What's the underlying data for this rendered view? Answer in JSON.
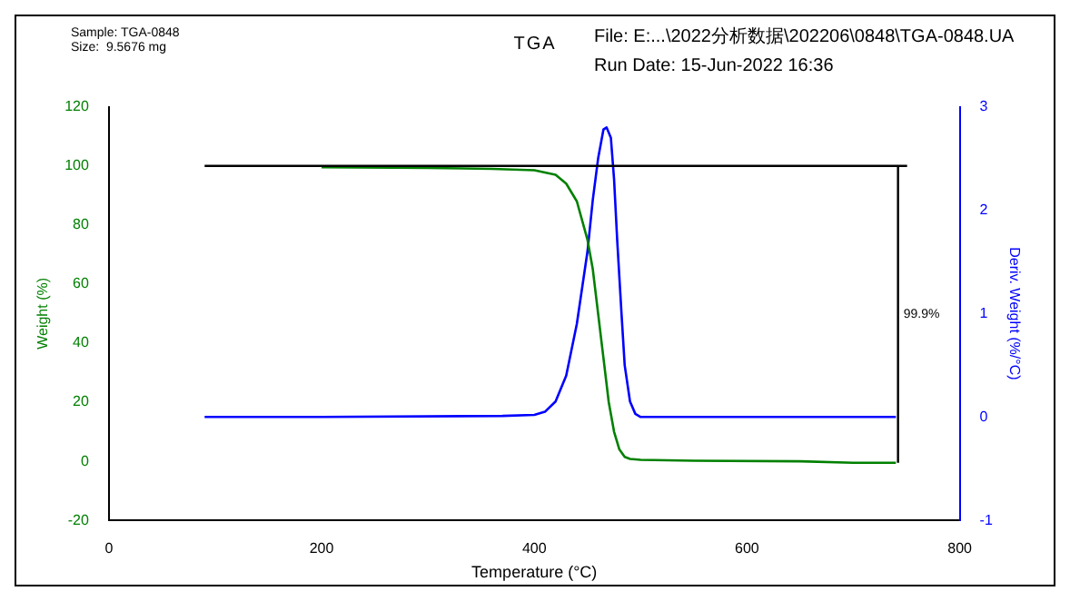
{
  "chart_data": {
    "type": "line",
    "title": "TGA",
    "xlabel": "Temperature (°C)",
    "ylabel": "Weight (%)",
    "y2label": "Deriv. Weight (%/°C)",
    "xlim": [
      0,
      800
    ],
    "xticks": [
      0,
      200,
      400,
      600,
      800
    ],
    "ylim": [
      -20,
      120
    ],
    "yticks": [
      -20,
      0,
      20,
      40,
      60,
      80,
      100,
      120
    ],
    "y2lim": [
      -1,
      3
    ],
    "y2ticks": [
      -1,
      0,
      1,
      2,
      3
    ],
    "grid": false,
    "legend": false,
    "marker": "none",
    "line_style": "solid",
    "series": [
      {
        "color": "#008000",
        "x": [
          200,
          300,
          360,
          400,
          420,
          430,
          440,
          450,
          455,
          460,
          465,
          470,
          475,
          480,
          485,
          490,
          500,
          550,
          650,
          700,
          740
        ],
        "values": [
          99.5,
          99.3,
          99,
          98.5,
          97,
          94,
          88,
          75,
          65,
          50,
          35,
          20,
          10,
          4,
          1.5,
          0.8,
          0.5,
          0.2,
          0,
          -0.5,
          -0.5
        ]
      },
      {
        "color": "#0000ff",
        "axis": "y2",
        "x": [
          90,
          200,
          370,
          400,
          410,
          420,
          430,
          440,
          450,
          455,
          460,
          465,
          468,
          472,
          475,
          478,
          482,
          485,
          490,
          495,
          500,
          600,
          740
        ],
        "values": [
          0,
          0,
          0.01,
          0.02,
          0.05,
          0.15,
          0.4,
          0.9,
          1.6,
          2.1,
          2.5,
          2.78,
          2.8,
          2.7,
          2.3,
          1.7,
          1,
          0.5,
          0.15,
          0.03,
          0,
          0,
          0
        ]
      }
    ],
    "ref_lines": [
      {
        "axis": "y",
        "value": 100
      },
      {
        "axis": "x",
        "value": 742
      }
    ],
    "annotations": [
      "Sample: TGA-0848",
      "Size:  9.5676 mg",
      "File: E:...\\2022分析数据\\202206\\0848\\TGA-0848.UA",
      "Run Date: 15-Jun-2022 16:36",
      "99.9%"
    ]
  }
}
